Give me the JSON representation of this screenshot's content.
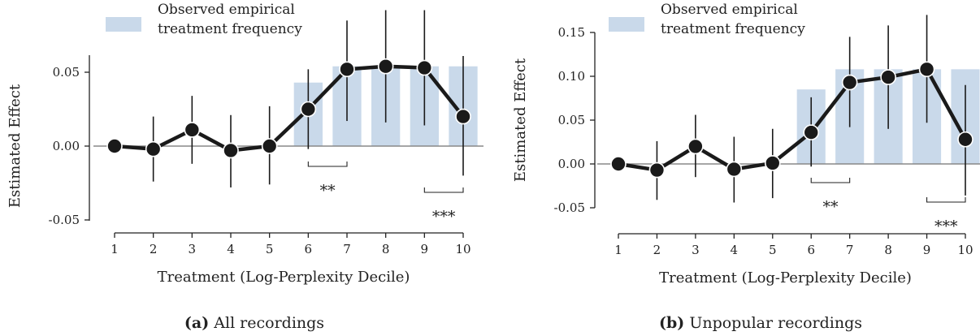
{
  "chart_data": [
    {
      "type": "line",
      "caption_tag": "(a)",
      "caption_text": "All recordings",
      "xlabel": "Treatment (Log-Perplexity Decile)",
      "ylabel": "Estimated Effect",
      "x": [
        1,
        2,
        3,
        4,
        5,
        6,
        7,
        8,
        9,
        10
      ],
      "x_tick_labels": [
        "1",
        "2",
        "3",
        "4",
        "5",
        "6",
        "7",
        "8",
        "9",
        "10"
      ],
      "ylim": [
        -0.05,
        0.1
      ],
      "y_ticks": [
        -0.05,
        0.0,
        0.05
      ],
      "y_tick_labels": [
        "-0.05",
        "0.00",
        "0.05"
      ],
      "series": [
        {
          "values": [
            0.0,
            -0.002,
            0.011,
            -0.003,
            0.0,
            0.025,
            0.052,
            0.054,
            0.053,
            0.02
          ],
          "ci_low": [
            0.0,
            -0.024,
            -0.012,
            -0.028,
            -0.026,
            -0.002,
            0.017,
            0.016,
            0.014,
            -0.02
          ],
          "ci_high": [
            0.0,
            0.02,
            0.034,
            0.021,
            0.027,
            0.052,
            0.085,
            0.092,
            0.092,
            0.061
          ],
          "color": "#1a1a1a"
        }
      ],
      "bars": {
        "legend": [
          "Observed empirical",
          "treatment frequency"
        ],
        "x": [
          6,
          7,
          8,
          9,
          10
        ],
        "values": [
          0.043,
          0.054,
          0.054,
          0.054,
          0.054
        ],
        "color": "#c9d9ea"
      },
      "baseline": 0.0,
      "legend_position": "top-left",
      "annotations": [
        {
          "text": "**",
          "x_from": 6,
          "x_to": 7
        },
        {
          "text": "***",
          "x_from": 9,
          "x_to": 10
        }
      ]
    },
    {
      "type": "line",
      "caption_tag": "(b)",
      "caption_text": "Unpopular recordings",
      "xlabel": "Treatment (Log-Perplexity Decile)",
      "ylabel": "Estimated Effect",
      "x": [
        1,
        2,
        3,
        4,
        5,
        6,
        7,
        8,
        9,
        10
      ],
      "x_tick_labels": [
        "1",
        "2",
        "3",
        "4",
        "5",
        "6",
        "7",
        "8",
        "9",
        "10"
      ],
      "ylim": [
        -0.05,
        0.17
      ],
      "y_ticks": [
        -0.05,
        0.0,
        0.05,
        0.1,
        0.15
      ],
      "y_tick_labels": [
        "-0.05",
        "0.00",
        "0.05",
        "0.10",
        "0.15"
      ],
      "series": [
        {
          "values": [
            0.0,
            -0.007,
            0.02,
            -0.006,
            0.001,
            0.036,
            0.093,
            0.099,
            0.108,
            0.028
          ],
          "ci_low": [
            0.0,
            -0.041,
            -0.015,
            -0.044,
            -0.039,
            -0.003,
            0.042,
            0.04,
            0.047,
            -0.036
          ],
          "ci_high": [
            0.0,
            0.026,
            0.056,
            0.031,
            0.04,
            0.076,
            0.145,
            0.158,
            0.17,
            0.09
          ],
          "color": "#1a1a1a"
        }
      ],
      "bars": {
        "legend": [
          "Observed empirical",
          "treatment frequency"
        ],
        "x": [
          6,
          7,
          8,
          9,
          10
        ],
        "values": [
          0.085,
          0.108,
          0.108,
          0.108,
          0.108
        ],
        "color": "#c9d9ea"
      },
      "baseline": 0.0,
      "legend_position": "top-left",
      "annotations": [
        {
          "text": "**",
          "x_from": 6,
          "x_to": 7
        },
        {
          "text": "***",
          "x_from": 9,
          "x_to": 10
        }
      ]
    }
  ]
}
